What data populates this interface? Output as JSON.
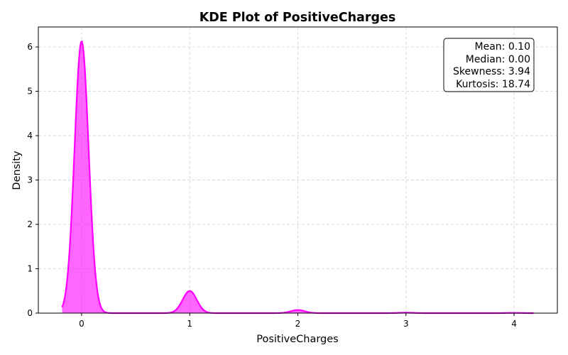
{
  "chart_data": {
    "type": "area",
    "title": "KDE Plot of PositiveCharges",
    "xlabel": "PositiveCharges",
    "ylabel": "Density",
    "xlim": [
      -0.4,
      4.4
    ],
    "ylim": [
      0,
      6.45
    ],
    "xticks": [
      0,
      1,
      2,
      3,
      4
    ],
    "yticks": [
      0,
      1,
      2,
      3,
      4,
      5,
      6
    ],
    "grid": true,
    "line_color": "#ff00ff",
    "fill_color": "#ff00ff",
    "x_range": [
      -0.18,
      4.18
    ],
    "peaks": [
      {
        "x": 0,
        "y": 6.13
      },
      {
        "x": 1,
        "y": 0.5
      },
      {
        "x": 2,
        "y": 0.07
      },
      {
        "x": 3,
        "y": 0.01
      },
      {
        "x": 4,
        "y": 0.005
      }
    ],
    "stats": [
      "Mean: 0.10",
      "Median: 0.00",
      "Skewness: 3.94",
      "Kurtosis: 18.74"
    ],
    "stats_placement": "top-right"
  }
}
